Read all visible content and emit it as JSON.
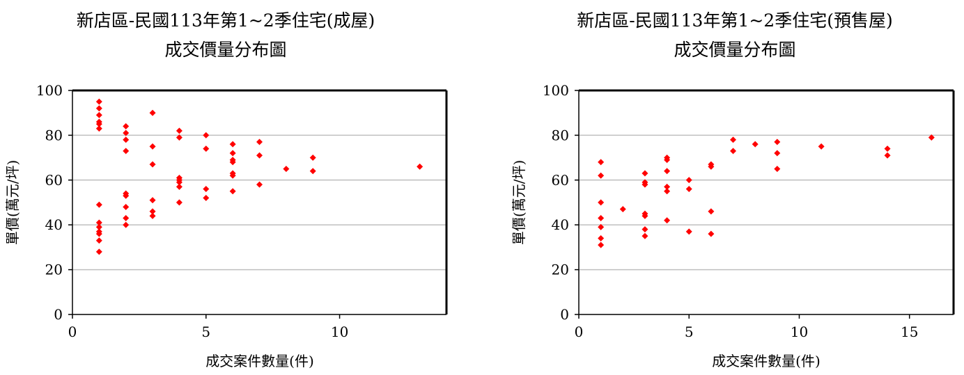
{
  "charts": [
    {
      "title_line1": "新店區-民國113年第1~2季住宅(成屋)",
      "title_line2": "成交價量分布圖",
      "xlabel": "成交案件數量(件)",
      "ylabel": "單價(萬元/坪)"
    },
    {
      "title_line1": "新店區-民國113年第1~2季住宅(預售屋)",
      "title_line2": "成交價量分布圖",
      "xlabel": "成交案件數量(件)",
      "ylabel": "單價(萬元/坪)"
    }
  ],
  "chart_data": [
    {
      "type": "scatter",
      "title": "新店區-民國113年第1~2季住宅(成屋) 成交價量分布圖",
      "xlabel": "成交案件數量(件)",
      "ylabel": "單價(萬元/坪)",
      "xlim": [
        0,
        14
      ],
      "ylim": [
        0,
        100
      ],
      "xticks": [
        0,
        5,
        10
      ],
      "yticks": [
        0,
        20,
        40,
        60,
        80,
        100
      ],
      "grid": "horizontal",
      "marker_color": "#ff0000",
      "points": [
        [
          1,
          95
        ],
        [
          1,
          92
        ],
        [
          1,
          89
        ],
        [
          1,
          86
        ],
        [
          1,
          85
        ],
        [
          1,
          83
        ],
        [
          1,
          49
        ],
        [
          1,
          41
        ],
        [
          1,
          39
        ],
        [
          1,
          37
        ],
        [
          1,
          36
        ],
        [
          1,
          33
        ],
        [
          1,
          28
        ],
        [
          2,
          84
        ],
        [
          2,
          81
        ],
        [
          2,
          78
        ],
        [
          2,
          73
        ],
        [
          2,
          54
        ],
        [
          2,
          53
        ],
        [
          2,
          48
        ],
        [
          2,
          43
        ],
        [
          2,
          40
        ],
        [
          3,
          90
        ],
        [
          3,
          75
        ],
        [
          3,
          67
        ],
        [
          3,
          51
        ],
        [
          3,
          46
        ],
        [
          3,
          44
        ],
        [
          4,
          82
        ],
        [
          4,
          79
        ],
        [
          4,
          61
        ],
        [
          4,
          60
        ],
        [
          4,
          59
        ],
        [
          4,
          57
        ],
        [
          4,
          50
        ],
        [
          5,
          80
        ],
        [
          5,
          74
        ],
        [
          5,
          56
        ],
        [
          5,
          52
        ],
        [
          6,
          76
        ],
        [
          6,
          72
        ],
        [
          6,
          69
        ],
        [
          6,
          68
        ],
        [
          6,
          63
        ],
        [
          6,
          62
        ],
        [
          6,
          55
        ],
        [
          7,
          77
        ],
        [
          7,
          71
        ],
        [
          7,
          58
        ],
        [
          8,
          65
        ],
        [
          9,
          70
        ],
        [
          9,
          64
        ],
        [
          13,
          66
        ]
      ]
    },
    {
      "type": "scatter",
      "title": "新店區-民國113年第1~2季住宅(預售屋) 成交價量分布圖",
      "xlabel": "成交案件數量(件)",
      "ylabel": "單價(萬元/坪)",
      "xlim": [
        0,
        17
      ],
      "ylim": [
        0,
        100
      ],
      "xticks": [
        0,
        5,
        10,
        15
      ],
      "yticks": [
        0,
        20,
        40,
        60,
        80,
        100
      ],
      "grid": "horizontal",
      "marker_color": "#ff0000",
      "points": [
        [
          1,
          68
        ],
        [
          1,
          62
        ],
        [
          1,
          50
        ],
        [
          1,
          43
        ],
        [
          1,
          39
        ],
        [
          1,
          34
        ],
        [
          1,
          31
        ],
        [
          2,
          47
        ],
        [
          3,
          63
        ],
        [
          3,
          59
        ],
        [
          3,
          58
        ],
        [
          3,
          45
        ],
        [
          3,
          44
        ],
        [
          3,
          38
        ],
        [
          3,
          35
        ],
        [
          4,
          70
        ],
        [
          4,
          69
        ],
        [
          4,
          64
        ],
        [
          4,
          57
        ],
        [
          4,
          55
        ],
        [
          4,
          42
        ],
        [
          5,
          60
        ],
        [
          5,
          56
        ],
        [
          5,
          37
        ],
        [
          6,
          67
        ],
        [
          6,
          66
        ],
        [
          6,
          46
        ],
        [
          6,
          36
        ],
        [
          7,
          78
        ],
        [
          7,
          73
        ],
        [
          8,
          76
        ],
        [
          9,
          77
        ],
        [
          9,
          72
        ],
        [
          9,
          65
        ],
        [
          11,
          75
        ],
        [
          14,
          74
        ],
        [
          14,
          71
        ],
        [
          16,
          79
        ]
      ]
    }
  ]
}
